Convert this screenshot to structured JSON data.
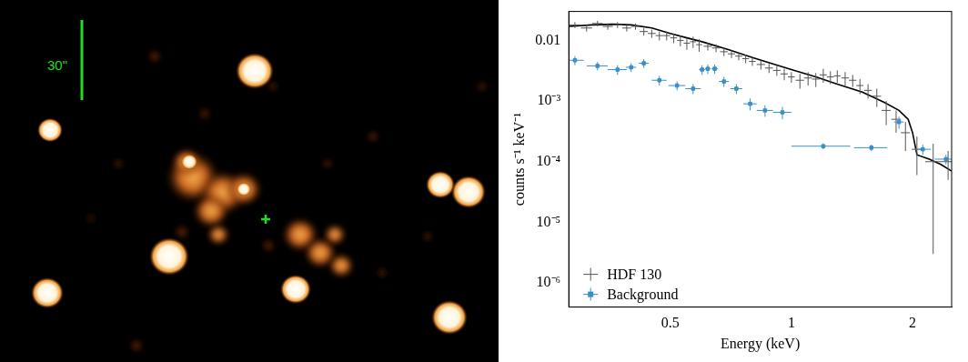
{
  "image": {
    "scale_label": "30\""
  },
  "chart_data": {
    "type": "scatter",
    "x_label": "Energy (keV)",
    "y_label": "counts s⁻¹ keV⁻¹",
    "log": true,
    "grid": false,
    "legend": "lower left",
    "xlim": [
      0.28,
      2.5
    ],
    "xticks": [
      0.5,
      1,
      2
    ],
    "ylim": [
      4e-07,
      0.03
    ],
    "yticks": [
      {
        "value": 1e-06,
        "label": "10⁻⁶"
      },
      {
        "value": 1e-05,
        "label": "10⁻⁵"
      },
      {
        "value": 0.0001,
        "label": "10⁻⁴"
      },
      {
        "value": 0.001,
        "label": "10⁻³"
      },
      0.01
    ],
    "series": [
      {
        "name": "HDF 130",
        "color": "#555555",
        "marker": "none",
        "x": [
          0.29,
          0.31,
          0.33,
          0.35,
          0.37,
          0.39,
          0.41,
          0.43,
          0.45,
          0.47,
          0.49,
          0.51,
          0.53,
          0.55,
          0.57,
          0.59,
          0.62,
          0.65,
          0.68,
          0.71,
          0.74,
          0.77,
          0.8,
          0.84,
          0.88,
          0.92,
          0.96,
          1.0,
          1.05,
          1.1,
          1.15,
          1.2,
          1.25,
          1.3,
          1.36,
          1.42,
          1.48,
          1.55,
          1.63,
          1.72,
          1.82,
          1.92,
          2.05,
          2.25,
          2.45
        ],
        "values": [
          0.018,
          0.016,
          0.019,
          0.017,
          0.018,
          0.016,
          0.017,
          0.014,
          0.013,
          0.012,
          0.012,
          0.011,
          0.01,
          0.009,
          0.0095,
          0.0085,
          0.008,
          0.0075,
          0.0065,
          0.006,
          0.0055,
          0.005,
          0.0045,
          0.004,
          0.0035,
          0.0032,
          0.0028,
          0.0025,
          0.0022,
          0.0024,
          0.0023,
          0.0027,
          0.0025,
          0.0026,
          0.0024,
          0.0022,
          0.0018,
          0.0015,
          0.0012,
          0.0007,
          0.0005,
          0.0003,
          0.00016,
          0.0001,
          0.0001
        ],
        "xerr": [
          0.01,
          0.01,
          0.01,
          0.01,
          0.01,
          0.01,
          0.01,
          0.01,
          0.01,
          0.01,
          0.01,
          0.01,
          0.01,
          0.01,
          0.01,
          0.01,
          0.015,
          0.015,
          0.015,
          0.015,
          0.015,
          0.015,
          0.015,
          0.02,
          0.02,
          0.02,
          0.02,
          0.02,
          0.025,
          0.025,
          0.025,
          0.025,
          0.025,
          0.025,
          0.03,
          0.03,
          0.03,
          0.035,
          0.04,
          0.045,
          0.05,
          0.05,
          0.06,
          0.1,
          0.1
        ],
        "yerr": [
          0.002,
          0.002,
          0.002,
          0.002,
          0.002,
          0.002,
          0.002,
          0.002,
          0.002,
          0.002,
          0.002,
          0.002,
          0.002,
          0.002,
          0.002,
          0.002,
          0.0012,
          0.0011,
          0.001,
          0.0009,
          0.0008,
          0.0008,
          0.0007,
          0.0007,
          0.0006,
          0.0006,
          0.0006,
          0.0005,
          0.0006,
          0.0006,
          0.0006,
          0.0007,
          0.0006,
          0.0006,
          0.0006,
          0.0005,
          0.0005,
          0.0004,
          0.0004,
          0.0003,
          0.0002,
          0.00015,
          0.0001,
          9.7e-05,
          5e-05
        ]
      },
      {
        "name": "Background",
        "color": "#3a8fc8",
        "marker": "square",
        "x": [
          0.29,
          0.33,
          0.37,
          0.4,
          0.43,
          0.47,
          0.52,
          0.57,
          0.6,
          0.62,
          0.645,
          0.68,
          0.73,
          0.79,
          0.86,
          0.95,
          1.2,
          1.58,
          1.85,
          2.12,
          2.42
        ],
        "values": [
          0.0047,
          0.0038,
          0.0033,
          0.0036,
          0.0042,
          0.0022,
          0.0018,
          0.0016,
          0.0033,
          0.0034,
          0.0034,
          0.0021,
          0.0016,
          0.0009,
          0.0007,
          0.00065,
          0.00018,
          0.00017,
          0.00045,
          0.00016,
          0.00011
        ],
        "xerr": [
          0.015,
          0.02,
          0.02,
          0.012,
          0.012,
          0.02,
          0.025,
          0.025,
          0.01,
          0.01,
          0.012,
          0.02,
          0.025,
          0.03,
          0.04,
          0.05,
          0.2,
          0.15,
          0.05,
          0.1,
          0.15
        ],
        "yerr": [
          0.0008,
          0.0006,
          0.0006,
          0.0006,
          0.0007,
          0.0004,
          0.0003,
          0.0003,
          0.0006,
          0.0006,
          0.0006,
          0.0004,
          0.0003,
          0.0002,
          0.00015,
          0.00015,
          2e-05,
          2e-05,
          0.0001,
          3e-05,
          2e-05
        ]
      },
      {
        "type": "line",
        "color": "#000000",
        "line_style": "solid",
        "x": [
          0.28,
          0.32,
          0.36,
          0.4,
          0.45,
          0.5,
          0.55,
          0.6,
          0.7,
          0.8,
          0.9,
          1.0,
          1.15,
          1.3,
          1.5,
          1.7,
          1.85,
          1.95,
          2.0,
          2.05,
          2.2,
          2.35,
          2.5
        ],
        "values": [
          0.017,
          0.018,
          0.0185,
          0.018,
          0.016,
          0.013,
          0.011,
          0.0095,
          0.007,
          0.0052,
          0.0041,
          0.0033,
          0.0025,
          0.0019,
          0.0014,
          0.00095,
          0.0007,
          0.0005,
          0.0003,
          0.00013,
          0.00011,
          9e-05,
          7e-05
        ]
      }
    ]
  }
}
